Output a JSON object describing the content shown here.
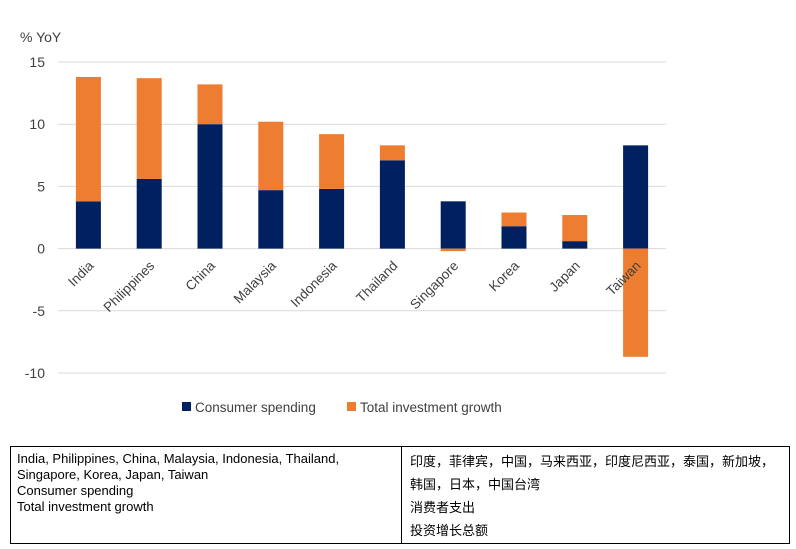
{
  "chart_data": {
    "type": "bar",
    "stacked": true,
    "unit_label": "% YoY",
    "categories": [
      "India",
      "Philippines",
      "China",
      "Malaysia",
      "Indonesia",
      "Thailand",
      "Singapore",
      "Korea",
      "Japan",
      "Taiwan"
    ],
    "series": [
      {
        "name": "Consumer spending",
        "color": "#002060",
        "values": [
          3.8,
          5.6,
          10.0,
          4.7,
          4.8,
          7.1,
          3.8,
          1.8,
          0.6,
          8.3
        ]
      },
      {
        "name": "Total investment growth",
        "color": "#ED7D31",
        "values": [
          10.0,
          8.1,
          3.2,
          5.5,
          4.4,
          1.2,
          -0.2,
          1.1,
          2.1,
          -8.7
        ]
      }
    ],
    "ylim": [
      -10,
      15
    ],
    "yticks": [
      15,
      10,
      5,
      0,
      -5,
      -10
    ],
    "grid": true,
    "legend_position": "bottom"
  },
  "glossary": {
    "english_lines": [
      "India, Philippines, China, Malaysia, Indonesia, Thailand, Singapore, Korea, Japan, Taiwan",
      "Consumer spending",
      "Total investment growth"
    ],
    "chinese_lines": [
      "印度，菲律宾，中国，马来西亚，印度尼西亚，泰国，新加坡，韩国，日本，中国台湾",
      "消费者支出",
      "投资增长总额"
    ]
  }
}
